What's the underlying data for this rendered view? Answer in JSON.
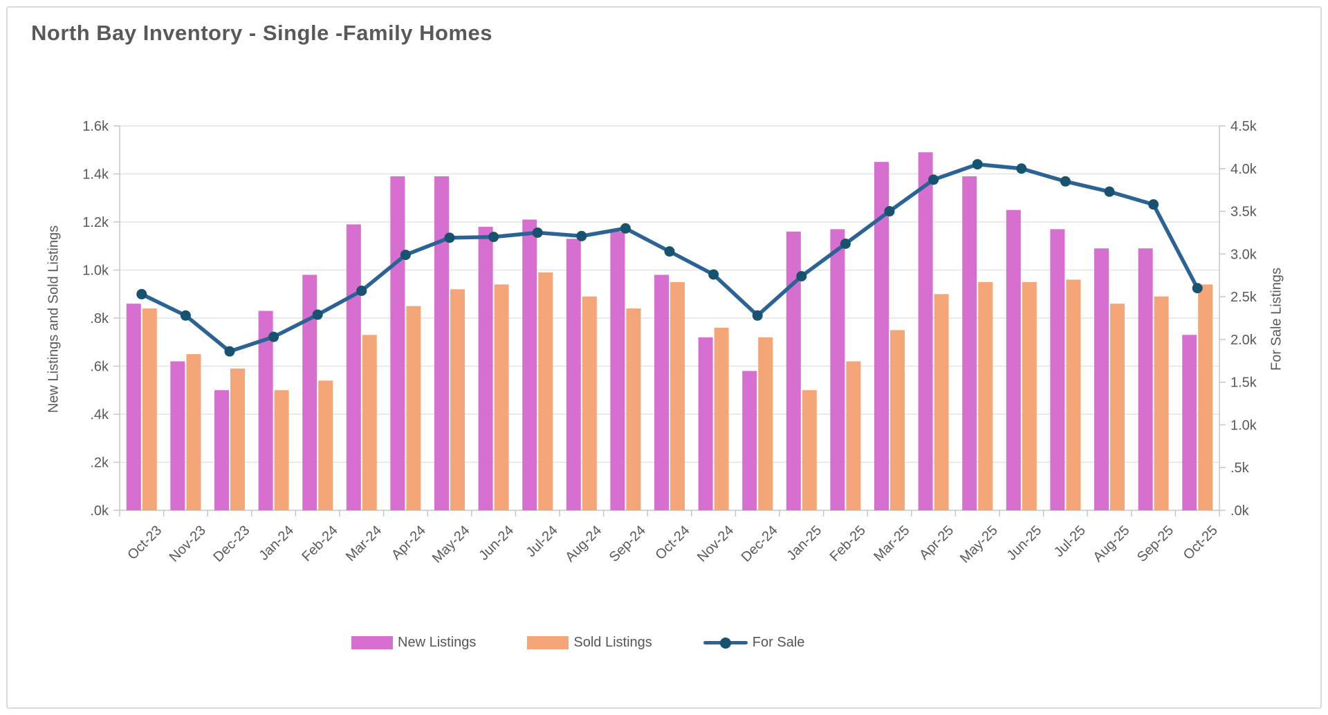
{
  "title": "North Bay Inventory  - Single -Family Homes",
  "axes": {
    "left": {
      "title": "New Listings and Sold Listings",
      "tick_labels": [
        "1.6k",
        "1.4k",
        "1.2k",
        "1.0k",
        ".8k",
        ".6k",
        ".4k",
        ".2k",
        ".0k"
      ]
    },
    "right": {
      "title": "For Sale Listings",
      "tick_labels": [
        "4.5k",
        "4.0k",
        "3.5k",
        "3.0k",
        "2.5k",
        "2.0k",
        "1.5k",
        "1.0k",
        ".5k",
        ".0k"
      ]
    }
  },
  "legend": {
    "items": [
      {
        "label": "New Listings",
        "type": "bar",
        "color": "#d66fd0"
      },
      {
        "label": "Sold Listings",
        "type": "bar",
        "color": "#f4a678"
      },
      {
        "label": "For Sale",
        "type": "line",
        "color": "#2b6394",
        "marker_color": "#17536f"
      }
    ]
  },
  "chart_data": {
    "type": "bar+line combo",
    "title": "North Bay Inventory - Single-Family Homes",
    "categories": [
      "Oct-23",
      "Nov-23",
      "Dec-23",
      "Jan-24",
      "Feb-24",
      "Mar-24",
      "Apr-24",
      "May-24",
      "Jun-24",
      "Jul-24",
      "Aug-24",
      "Sep-24",
      "Oct-24",
      "Nov-24",
      "Dec-24",
      "Jan-25",
      "Feb-25",
      "Mar-25",
      "Apr-25",
      "May-25",
      "Jun-25",
      "Jul-25",
      "Aug-25",
      "Sep-25",
      "Oct-25"
    ],
    "series": [
      {
        "name": "New Listings",
        "type": "bar",
        "axis": "left",
        "color": "#d66fd0",
        "values_k": [
          0.86,
          0.62,
          0.5,
          0.83,
          0.98,
          1.19,
          1.39,
          1.39,
          1.18,
          1.21,
          1.13,
          1.16,
          0.98,
          0.72,
          0.58,
          1.16,
          1.17,
          1.45,
          1.49,
          1.39,
          1.25,
          1.17,
          1.09,
          1.09,
          0.73
        ]
      },
      {
        "name": "Sold Listings",
        "type": "bar",
        "axis": "left",
        "color": "#f4a678",
        "values_k": [
          0.84,
          0.65,
          0.59,
          0.5,
          0.54,
          0.73,
          0.85,
          0.92,
          0.94,
          0.99,
          0.89,
          0.84,
          0.95,
          0.76,
          0.72,
          0.5,
          0.62,
          0.75,
          0.9,
          0.95,
          0.95,
          0.96,
          0.86,
          0.89,
          0.94
        ]
      },
      {
        "name": "For Sale",
        "type": "line",
        "axis": "right",
        "color": "#2b6394",
        "marker_color": "#17536f",
        "values_k": [
          2.53,
          2.28,
          1.86,
          2.03,
          2.29,
          2.57,
          2.99,
          3.19,
          3.2,
          3.25,
          3.21,
          3.3,
          3.03,
          2.76,
          2.28,
          2.74,
          3.12,
          3.5,
          3.87,
          4.05,
          4.0,
          3.85,
          3.73,
          3.58,
          2.6
        ]
      }
    ],
    "left_axis": {
      "label": "New Listings and Sold Listings",
      "range_k": [
        0,
        1.6
      ],
      "tick_step_k": 0.2
    },
    "right_axis": {
      "label": "For Sale Listings",
      "range_k": [
        0,
        4.5
      ],
      "tick_step_k": 0.5
    },
    "grid": "horizontal gridlines at left-axis ticks",
    "legend_position": "bottom",
    "x_label_rotation_deg": -45
  },
  "style": {
    "grid_color": "#e4e4e4",
    "axis_color": "#c6c6c6",
    "tick_text_color": "#595959",
    "title_color": "#595959"
  }
}
